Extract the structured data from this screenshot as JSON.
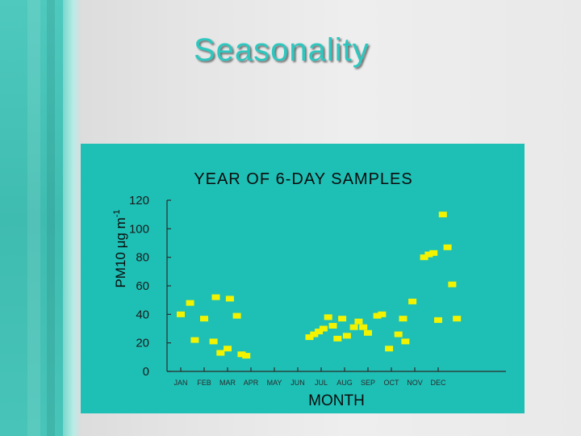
{
  "slide": {
    "title": "Seasonality"
  },
  "colors": {
    "accent_stripe": "#3fbcb0",
    "title_text": "#2ec7bf",
    "chart_background": "#1ec0b6",
    "points": "#f3f300"
  },
  "chart_data": {
    "type": "scatter",
    "title": "YEAR OF 6-DAY SAMPLES",
    "xlabel": "MONTH",
    "ylabel": "PM10 μg m-1",
    "ylabel_parts": {
      "main": "PM10 μg m",
      "sup": "-1"
    },
    "categories": [
      "JAN",
      "FEB",
      "MAR",
      "APR",
      "MAY",
      "JUN",
      "JUL",
      "AUG",
      "SEP",
      "OCT",
      "NOV",
      "DEC"
    ],
    "ylim": [
      0,
      120
    ],
    "yticks": [
      0,
      20,
      40,
      60,
      80,
      100,
      120
    ],
    "grid": false,
    "legend": "none",
    "series": [
      {
        "x": [
          0.0,
          0.4,
          0.6,
          1.0,
          1.4,
          1.5,
          1.7,
          2.0,
          2.1,
          2.4,
          2.6,
          2.8,
          5.5,
          5.7,
          5.9,
          6.1,
          6.3,
          6.5,
          6.7,
          6.9,
          7.1,
          7.4,
          7.6,
          7.8,
          8.0,
          8.4,
          8.6,
          8.9,
          9.3,
          9.5,
          9.6,
          9.9,
          10.4,
          10.6,
          10.8,
          11.0,
          11.2,
          11.4,
          11.6,
          11.8
        ],
        "y": [
          40,
          48,
          22,
          37,
          21,
          52,
          13,
          16,
          51,
          39,
          12,
          11,
          24,
          26,
          28,
          30,
          38,
          32,
          23,
          37,
          25,
          31,
          35,
          31,
          27,
          39,
          40,
          16,
          26,
          37,
          21,
          49,
          80,
          82,
          83,
          36,
          110,
          87,
          61,
          37
        ]
      }
    ]
  }
}
